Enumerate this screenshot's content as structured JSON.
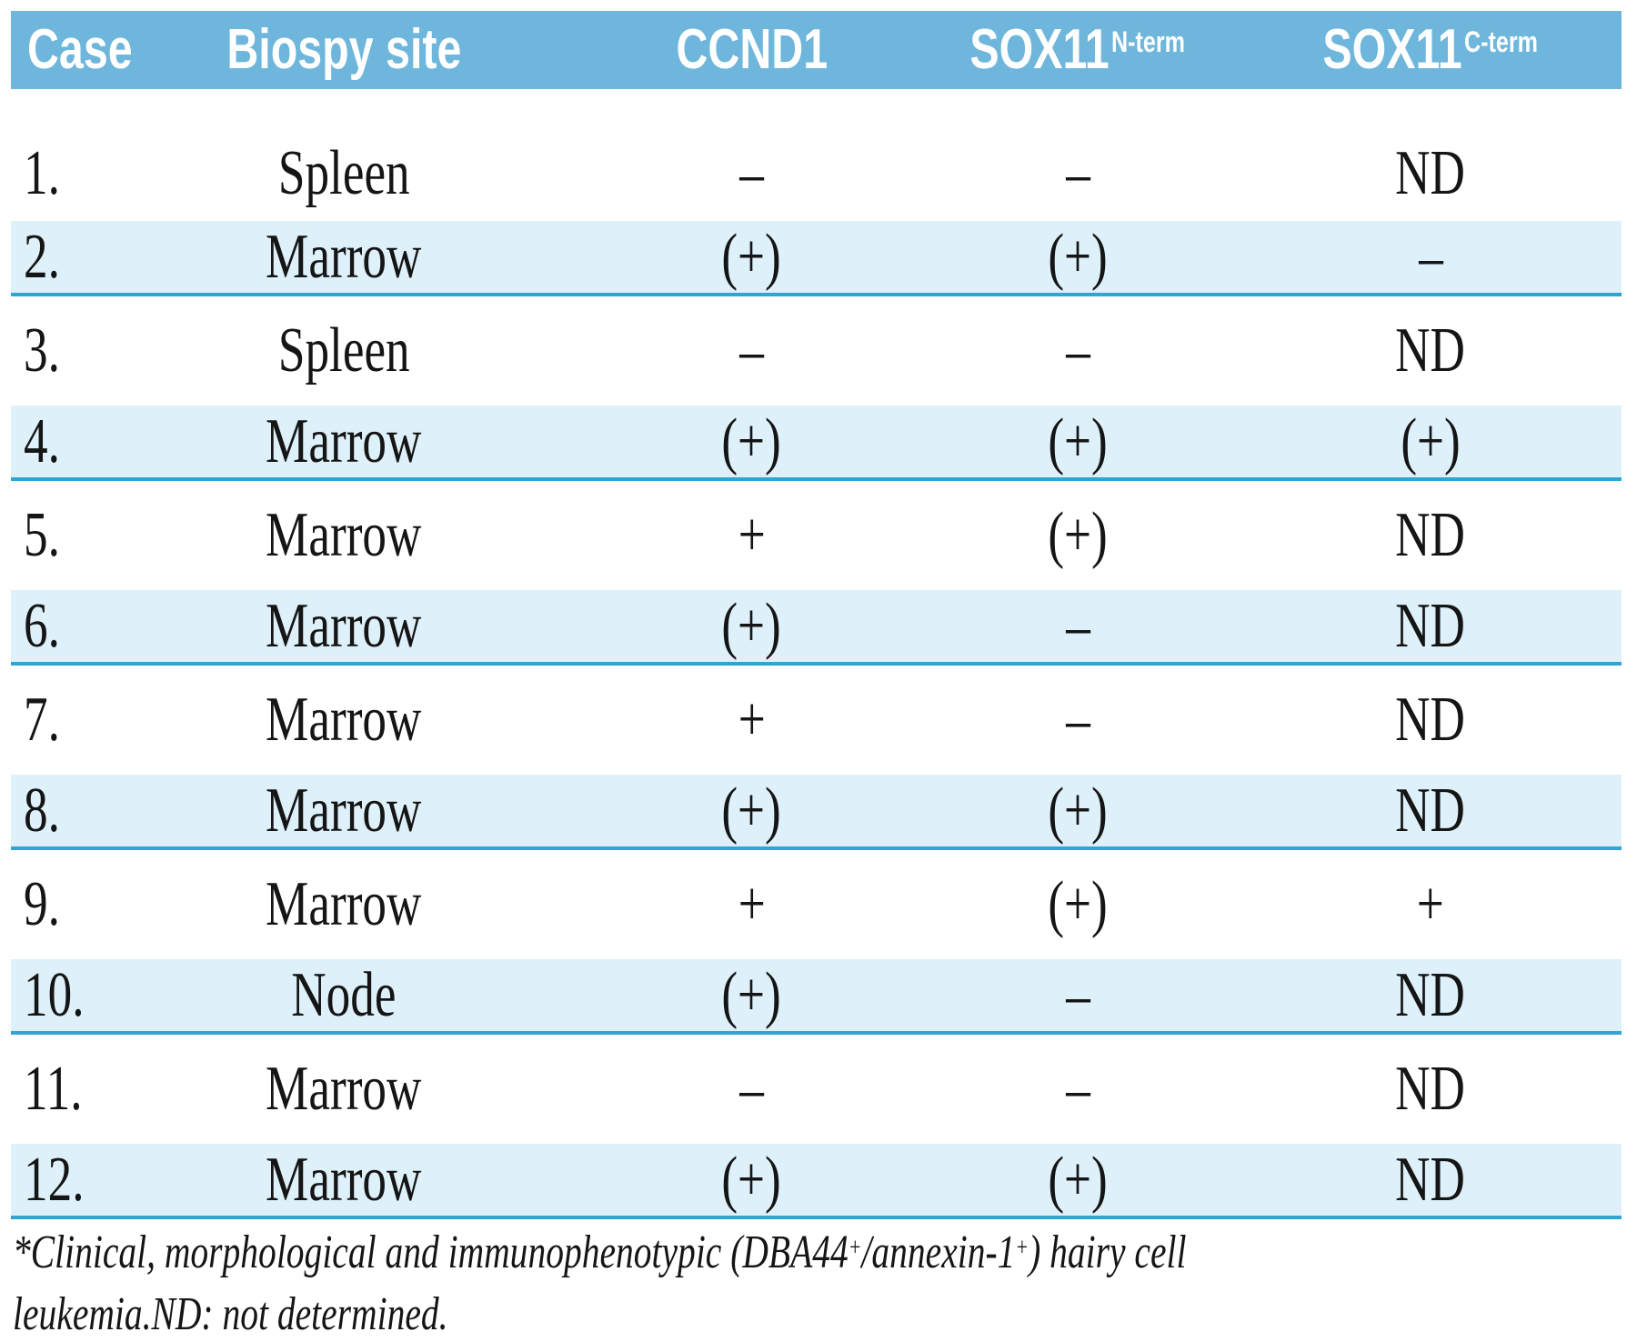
{
  "table": {
    "headers": [
      {
        "label": "Case",
        "sup": ""
      },
      {
        "label": "Biospy site",
        "sup": ""
      },
      {
        "label": "CCND1",
        "sup": ""
      },
      {
        "label": "SOX11",
        "sup": "N-term"
      },
      {
        "label": "SOX11",
        "sup": "C-term"
      }
    ],
    "rows": [
      {
        "case": "1.",
        "site": "Spleen",
        "ccnd1": "–",
        "sox11_nterm": "–",
        "sox11_cterm": "ND"
      },
      {
        "case": "2.",
        "site": "Marrow",
        "ccnd1": "(+)",
        "sox11_nterm": "(+)",
        "sox11_cterm": "–"
      },
      {
        "case": "3.",
        "site": "Spleen",
        "ccnd1": "–",
        "sox11_nterm": "–",
        "sox11_cterm": "ND"
      },
      {
        "case": "4.",
        "site": "Marrow",
        "ccnd1": "(+)",
        "sox11_nterm": "(+)",
        "sox11_cterm": "(+)"
      },
      {
        "case": "5.",
        "site": "Marrow",
        "ccnd1": "+",
        "sox11_nterm": "(+)",
        "sox11_cterm": "ND"
      },
      {
        "case": "6.",
        "site": "Marrow",
        "ccnd1": "(+)",
        "sox11_nterm": "–",
        "sox11_cterm": "ND"
      },
      {
        "case": "7.",
        "site": "Marrow",
        "ccnd1": "+",
        "sox11_nterm": "–",
        "sox11_cterm": "ND"
      },
      {
        "case": "8.",
        "site": "Marrow",
        "ccnd1": "(+)",
        "sox11_nterm": "(+)",
        "sox11_cterm": "ND"
      },
      {
        "case": "9.",
        "site": "Marrow",
        "ccnd1": "+",
        "sox11_nterm": "(+)",
        "sox11_cterm": "+"
      },
      {
        "case": "10.",
        "site": "Node",
        "ccnd1": "(+)",
        "sox11_nterm": "–",
        "sox11_cterm": "ND"
      },
      {
        "case": "11.",
        "site": "Marrow",
        "ccnd1": "–",
        "sox11_nterm": "–",
        "sox11_cterm": "ND"
      },
      {
        "case": "12.",
        "site": "Marrow",
        "ccnd1": "(+)",
        "sox11_nterm": "(+)",
        "sox11_cterm": "ND"
      }
    ]
  },
  "footnote": {
    "lines": [
      {
        "segments": [
          {
            "text": "*Clinical, morphological and immunophenotypic (DBA44",
            "sup": false
          },
          {
            "text": "+",
            "sup": true
          },
          {
            "text": "/annexin-1",
            "sup": false
          },
          {
            "text": "+",
            "sup": true
          },
          {
            "text": ") hairy cell",
            "sup": false
          }
        ]
      },
      {
        "segments": [
          {
            "text": "leukemia.ND: not determined.",
            "sup": false
          }
        ]
      }
    ]
  },
  "colors": {
    "header_bg": "#6EB6DB",
    "stripe_bg": "#DEF0FA",
    "stripe_border": "#30A5D3",
    "text": "#151515"
  }
}
